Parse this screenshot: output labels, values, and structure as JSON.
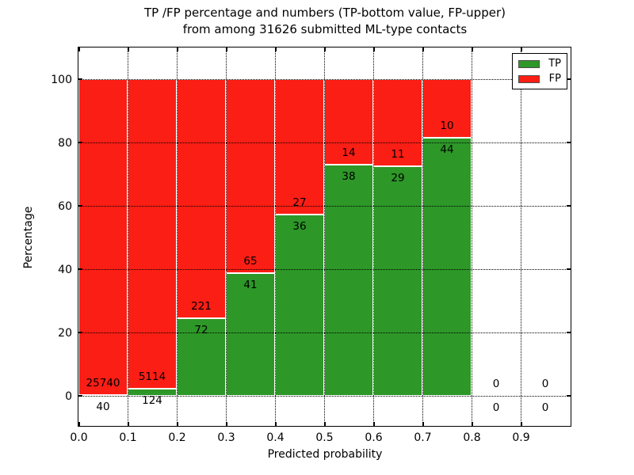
{
  "figure": {
    "title_line1": "TP /FP percentage and numbers (TP-bottom value, FP-upper)",
    "title_line2": "from among 31626 submitted ML-type contacts"
  },
  "chart_data": {
    "type": "bar",
    "stacked": true,
    "title": "TP /FP percentage and numbers (TP-bottom value, FP-upper) from among 31626 submitted ML-type contacts",
    "xlabel": "Predicted probability",
    "ylabel": "Percentage",
    "xlim": [
      0.0,
      1.0
    ],
    "ylim": [
      -10,
      110
    ],
    "x_ticks": [
      "0.0",
      "0.1",
      "0.2",
      "0.3",
      "0.4",
      "0.5",
      "0.6",
      "0.7",
      "0.8",
      "0.9"
    ],
    "y_ticks": [
      0,
      20,
      40,
      60,
      80,
      100
    ],
    "grid": "dotted-both-axes",
    "total_contacts": 31626,
    "categories": [
      "0.0-0.1",
      "0.1-0.2",
      "0.2-0.3",
      "0.3-0.4",
      "0.4-0.5",
      "0.5-0.6",
      "0.6-0.7",
      "0.7-0.8",
      "0.8-0.9",
      "0.9-1.0"
    ],
    "series": [
      {
        "name": "TP",
        "counts": [
          40,
          124,
          72,
          41,
          36,
          38,
          29,
          44,
          0,
          0
        ],
        "percent": [
          0.16,
          2.37,
          24.57,
          38.68,
          57.14,
          73.08,
          72.5,
          81.48,
          0,
          0
        ]
      },
      {
        "name": "FP",
        "counts": [
          25740,
          5114,
          221,
          65,
          27,
          14,
          11,
          10,
          0,
          0
        ],
        "percent": [
          99.84,
          97.63,
          75.43,
          61.32,
          42.86,
          26.92,
          27.5,
          18.52,
          0,
          0
        ]
      }
    ],
    "legend": {
      "position": "upper right",
      "entries": [
        {
          "label": "TP",
          "color": "#2d9728"
        },
        {
          "label": "FP",
          "color": "#fb1e15"
        }
      ]
    }
  },
  "colors": {
    "tp": "#2d9728",
    "fp": "#fb1e15",
    "bar_edge": "#ffffff",
    "grid": "#000000",
    "background": "#ffffff"
  }
}
